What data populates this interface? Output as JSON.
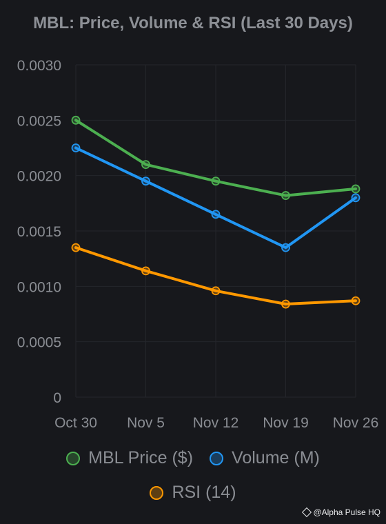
{
  "chart_data": {
    "type": "line",
    "title": "MBL: Price, Volume & RSI (Last 30 Days)",
    "categories": [
      "Oct 30",
      "Nov 5",
      "Nov 12",
      "Nov 19",
      "Nov 26"
    ],
    "ylim": [
      0,
      0.003
    ],
    "yticks": [
      "0",
      "0.0005",
      "0.0010",
      "0.0015",
      "0.0020",
      "0.0025",
      "0.0030"
    ],
    "grid": true,
    "legend_position": "bottom",
    "series": [
      {
        "name": "MBL Price ($)",
        "color": "#4caf50",
        "values": [
          0.0025,
          0.0021,
          0.00195,
          0.00182,
          0.00188
        ]
      },
      {
        "name": "Volume (M)",
        "color": "#2196f3",
        "values": [
          0.00225,
          0.00195,
          0.00165,
          0.00135,
          0.0018
        ]
      },
      {
        "name": "RSI (14)",
        "color": "#ff9800",
        "values": [
          0.00135,
          0.00114,
          0.00096,
          0.00084,
          0.00087
        ]
      }
    ]
  },
  "watermark": {
    "text": "@Alpha Pulse HQ"
  }
}
